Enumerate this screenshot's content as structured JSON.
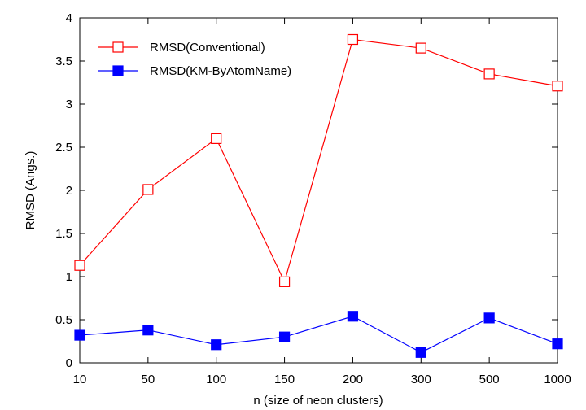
{
  "chart_data": {
    "type": "line",
    "categories": [
      "10",
      "50",
      "100",
      "150",
      "200",
      "300",
      "500",
      "1000"
    ],
    "series": [
      {
        "name": "RMSD(Conventional)",
        "color": "#ff0000",
        "marker": "open-square",
        "values": [
          1.13,
          2.01,
          2.6,
          0.94,
          3.75,
          3.65,
          3.35,
          3.21
        ]
      },
      {
        "name": "RMSD(KM-ByAtomName)",
        "color": "#0000ff",
        "marker": "filled-square",
        "values": [
          0.32,
          0.38,
          0.21,
          0.3,
          0.54,
          0.12,
          0.52,
          0.22
        ]
      }
    ],
    "title": "",
    "xlabel": "n (size of neon clusters)",
    "ylabel": "RMSD (Angs.)",
    "ylim": [
      0,
      4
    ],
    "yticks": [
      "0",
      "0.5",
      "1",
      "1.5",
      "2",
      "2.5",
      "3",
      "3.5",
      "4"
    ],
    "grid": false,
    "legend_position": "top-left"
  }
}
